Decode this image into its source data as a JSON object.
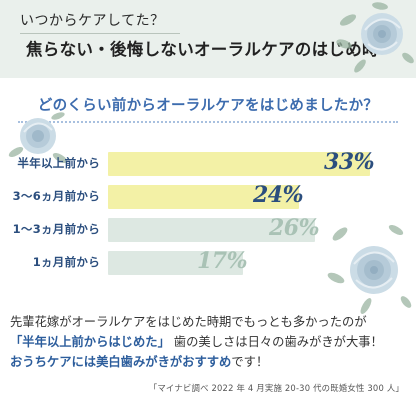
{
  "header": {
    "kicker": "いつからケアしてた？",
    "title": "焦らない・後悔しないオーラルケアのはじめ時"
  },
  "question": "どのくらい前からオーラルケアをはじめましたか？",
  "chart_data": {
    "type": "bar",
    "orientation": "horizontal",
    "categories": [
      "半年以上前から",
      "3〜6ヵ月前から",
      "1〜3ヵ月前から",
      "1ヵ月前から"
    ],
    "values": [
      33,
      24,
      26,
      17
    ],
    "value_labels": [
      "33%",
      "24%",
      "26%",
      "17%"
    ],
    "unit": "%",
    "xlim": [
      0,
      35
    ],
    "colors": {
      "highlight": "#f3f1a6",
      "normal": "#dde8e2",
      "highlight_text": "#2b4e7e",
      "normal_text": "#a9c2b5"
    },
    "highlighted": [
      true,
      true,
      false,
      false
    ]
  },
  "body": {
    "line1": "先輩花嫁がオーラルケアをはじめた時期でもっとも多かったのが",
    "line2_emphasis": "「半年以上前からはじめた」",
    "line2_rest": "歯の美しさは日々の歯みがきが大事！",
    "line3_emphasis": "おうちケアには美白歯みがきがおすすめ",
    "line3_rest": "です！"
  },
  "source": "「マイナビ調べ 2022 年 4 月実施 20-30 代の既婚女性 300 人」",
  "decor": {
    "flower_icon": "rose-icon",
    "flower_color": "#bcd0dc",
    "leaf_color": "#9bb5a2"
  }
}
